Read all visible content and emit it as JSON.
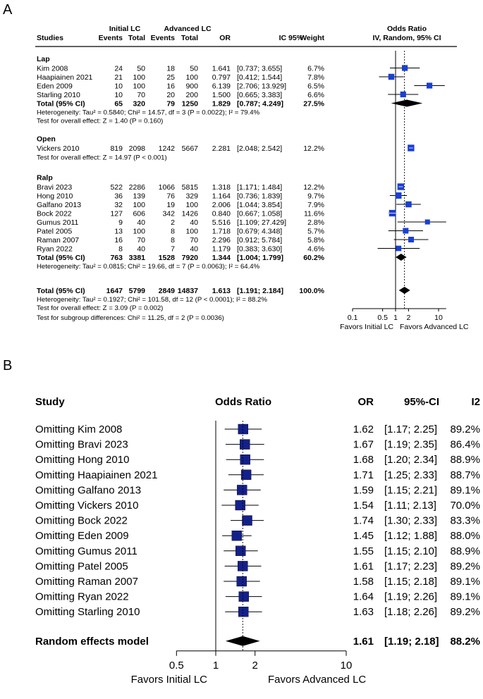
{
  "chart_data": [
    {
      "type": "forest",
      "panel_label": "A",
      "headers": {
        "studies": "Studies",
        "initial_group": "Initial LC",
        "advanced_group": "Advanced LC",
        "events": "Events",
        "total": "Total",
        "or": "OR",
        "ci": "IC 95%",
        "weight": "Weight",
        "plot_title": "Odds Ratio",
        "plot_subtitle": "IV, Random, 95% CI"
      },
      "subgroups": [
        {
          "name": "Lap",
          "studies": [
            {
              "name": "Kim 2008",
              "e1": "24",
              "n1": "50",
              "e2": "18",
              "n2": "50",
              "or_text": "1.641",
              "ci_text": "[0.737;  3.655]",
              "w_text": "6.7%",
              "or": 1.641,
              "lo": 0.737,
              "hi": 3.655,
              "w": 6.7
            },
            {
              "name": "Haapiainen 2021",
              "e1": "21",
              "n1": "100",
              "e2": "25",
              "n2": "100",
              "or_text": "0.797",
              "ci_text": "[0.412;  1.544]",
              "w_text": "7.8%",
              "or": 0.797,
              "lo": 0.412,
              "hi": 1.544,
              "w": 7.8
            },
            {
              "name": "Eden 2009",
              "e1": "10",
              "n1": "100",
              "e2": "16",
              "n2": "900",
              "or_text": "6.139",
              "ci_text": "[2.706; 13.929]",
              "w_text": "6.5%",
              "or": 6.139,
              "lo": 2.706,
              "hi": 13.929,
              "w": 6.5
            },
            {
              "name": "Starling 2010",
              "e1": "10",
              "n1": "70",
              "e2": "20",
              "n2": "200",
              "or_text": "1.500",
              "ci_text": "[0.665;  3.383]",
              "w_text": "6.6%",
              "or": 1.5,
              "lo": 0.665,
              "hi": 3.383,
              "w": 6.6
            }
          ],
          "total": {
            "label": "Total (95% CI)",
            "n1": "320",
            "e1": "65",
            "e2": "79",
            "n2": "1250",
            "or_text": "1.829",
            "ci_text": "[0.787;  4.249]",
            "w_text": "27.5%",
            "or": 1.829,
            "lo": 0.787,
            "hi": 4.249
          },
          "notes": [
            "Heterogeneity: Tau² = 0.5840; Chi² = 14.57, df = 3 (P = 0.0022); I² = 79.4%",
            "Test for overall effect: Z = 1.40 (P = 0.160)"
          ]
        },
        {
          "name": "Open",
          "studies": [
            {
              "name": "Vickers 2010",
              "e1": "819",
              "n1": "2098",
              "e2": "1242",
              "n2": "5667",
              "or_text": "2.281",
              "ci_text": "[2.048;  2.542]",
              "w_text": "12.2%",
              "or": 2.281,
              "lo": 2.048,
              "hi": 2.542,
              "w": 12.2
            }
          ],
          "notes": [
            "Test for overall effect: Z = 14.97 (P < 0.001)"
          ]
        },
        {
          "name": "Ralp",
          "studies": [
            {
              "name": "Bravi 2023",
              "e1": "522",
              "n1": "2286",
              "e2": "1066",
              "n2": "5815",
              "or_text": "1.318",
              "ci_text": "[1.171;  1.484]",
              "w_text": "12.2%",
              "or": 1.318,
              "lo": 1.171,
              "hi": 1.484,
              "w": 12.2
            },
            {
              "name": "Hong 2010",
              "e1": "36",
              "n1": "139",
              "e2": "76",
              "n2": "329",
              "or_text": "1.164",
              "ci_text": "[0.736;  1.839]",
              "w_text": "9.7%",
              "or": 1.164,
              "lo": 0.736,
              "hi": 1.839,
              "w": 9.7
            },
            {
              "name": "Galfano 2013",
              "e1": "32",
              "n1": "100",
              "e2": "19",
              "n2": "100",
              "or_text": "2.006",
              "ci_text": "[1.044;  3.854]",
              "w_text": "7.9%",
              "or": 2.006,
              "lo": 1.044,
              "hi": 3.854,
              "w": 7.9
            },
            {
              "name": "Bock 2022",
              "e1": "127",
              "n1": "606",
              "e2": "342",
              "n2": "1426",
              "or_text": "0.840",
              "ci_text": "[0.667;  1.058]",
              "w_text": "11.6%",
              "or": 0.84,
              "lo": 0.667,
              "hi": 1.058,
              "w": 11.6
            },
            {
              "name": "Gumus 2011",
              "e1": "9",
              "n1": "40",
              "e2": "2",
              "n2": "40",
              "or_text": "5.516",
              "ci_text": "[1.109; 27.429]",
              "w_text": "2.8%",
              "or": 5.516,
              "lo": 1.109,
              "hi": 27.429,
              "w": 2.8
            },
            {
              "name": "Patel 2005",
              "e1": "13",
              "n1": "100",
              "e2": "8",
              "n2": "100",
              "or_text": "1.718",
              "ci_text": "[0.679;  4.348]",
              "w_text": "5.7%",
              "or": 1.718,
              "lo": 0.679,
              "hi": 4.348,
              "w": 5.7
            },
            {
              "name": "Raman 2007",
              "e1": "16",
              "n1": "70",
              "e2": "8",
              "n2": "70",
              "or_text": "2.296",
              "ci_text": "[0.912;  5.784]",
              "w_text": "5.8%",
              "or": 2.296,
              "lo": 0.912,
              "hi": 5.784,
              "w": 5.8
            },
            {
              "name": "Ryan 2022",
              "e1": "8",
              "n1": "40",
              "e2": "7",
              "n2": "40",
              "or_text": "1.179",
              "ci_text": "[0.383;  3.630]",
              "w_text": "4.6%",
              "or": 1.179,
              "lo": 0.383,
              "hi": 3.63,
              "w": 4.6
            }
          ],
          "total": {
            "label": "Total (95% CI)",
            "n1": "3381",
            "e1": "763",
            "e2": "1528",
            "n2": "7920",
            "or_text": "1.344",
            "ci_text": "[1.004;  1.799]",
            "w_text": "60.2%",
            "or": 1.344,
            "lo": 1.004,
            "hi": 1.799
          },
          "notes": [
            "Heterogeneity: Tau² = 0.0815; Chi² = 19.66, df = 7 (P = 0.0063); I² = 64.4%"
          ]
        }
      ],
      "overall": {
        "label": "Total (95% CI)",
        "e1": "1647",
        "n1": "5799",
        "e2": "2849",
        "n2": "14837",
        "or_text": "1.613",
        "ci_text": "[1.191;  2.184]",
        "w_text": "100.0%",
        "or": 1.613,
        "lo": 1.191,
        "hi": 2.184
      },
      "overall_notes": [
        "Heterogeneity: Tau² = 0.1927; Chi² = 101.58, df = 12 (P < 0.0001); I² = 88.2%",
        "Test for overall effect: Z = 3.09 (P = 0.002)",
        "Test for subgroup differences: Chi² = 11.25, df = 2 (P = 0.0036)"
      ],
      "x_axis": {
        "scale": "log",
        "range": [
          0.1,
          15
        ],
        "ticks": [
          0.1,
          0.5,
          1,
          2,
          10
        ],
        "tick_labels": [
          "0.1",
          "0.5",
          "1",
          "2",
          "10"
        ],
        "reference": 1,
        "pooled_line": 1.613
      },
      "favors": {
        "left": "Favors Initial LC",
        "right": "Favors Advanced LC"
      }
    },
    {
      "type": "forest",
      "panel_label": "B",
      "headers": {
        "study": "Study",
        "plot_title": "Odds Ratio",
        "or": "OR",
        "ci": "95%-CI",
        "i2": "I2"
      },
      "rows": [
        {
          "name": "Omitting Kim 2008",
          "or_text": "1.62",
          "ci_text": "[1.17; 2.25]",
          "i2": "89.2%",
          "or": 1.62,
          "lo": 1.17,
          "hi": 2.25
        },
        {
          "name": "Omitting Bravi 2023",
          "or_text": "1.67",
          "ci_text": "[1.19; 2.35]",
          "i2": "86.4%",
          "or": 1.67,
          "lo": 1.19,
          "hi": 2.35
        },
        {
          "name": "Omitting Hong 2010",
          "or_text": "1.68",
          "ci_text": "[1.20; 2.34]",
          "i2": "88.9%",
          "or": 1.68,
          "lo": 1.2,
          "hi": 2.34
        },
        {
          "name": "Omitting Haapiainen 2021",
          "or_text": "1.71",
          "ci_text": "[1.25; 2.33]",
          "i2": "88.7%",
          "or": 1.71,
          "lo": 1.25,
          "hi": 2.33
        },
        {
          "name": "Omitting Galfano 2013",
          "or_text": "1.59",
          "ci_text": "[1.15; 2.21]",
          "i2": "89.1%",
          "or": 1.59,
          "lo": 1.15,
          "hi": 2.21
        },
        {
          "name": "Omitting Vickers 2010",
          "or_text": "1.54",
          "ci_text": "[1.11; 2.13]",
          "i2": "70.0%",
          "or": 1.54,
          "lo": 1.11,
          "hi": 2.13
        },
        {
          "name": "Omitting Bock 2022",
          "or_text": "1.74",
          "ci_text": "[1.30; 2.33]",
          "i2": "83.3%",
          "or": 1.74,
          "lo": 1.3,
          "hi": 2.33
        },
        {
          "name": "Omitting Eden 2009",
          "or_text": "1.45",
          "ci_text": "[1.12; 1.88]",
          "i2": "88.0%",
          "or": 1.45,
          "lo": 1.12,
          "hi": 1.88
        },
        {
          "name": "Omitting Gumus 2011",
          "or_text": "1.55",
          "ci_text": "[1.15; 2.10]",
          "i2": "88.9%",
          "or": 1.55,
          "lo": 1.15,
          "hi": 2.1
        },
        {
          "name": "Omitting Patel 2005",
          "or_text": "1.61",
          "ci_text": "[1.17; 2.23]",
          "i2": "89.2%",
          "or": 1.61,
          "lo": 1.17,
          "hi": 2.23
        },
        {
          "name": "Omitting Raman 2007",
          "or_text": "1.58",
          "ci_text": "[1.15; 2.18]",
          "i2": "89.1%",
          "or": 1.58,
          "lo": 1.15,
          "hi": 2.18
        },
        {
          "name": "Omitting Ryan 2022",
          "or_text": "1.64",
          "ci_text": "[1.19; 2.26]",
          "i2": "89.1%",
          "or": 1.64,
          "lo": 1.19,
          "hi": 2.26
        },
        {
          "name": "Omitting Starling 2010",
          "or_text": "1.63",
          "ci_text": "[1.18; 2.26]",
          "i2": "89.2%",
          "or": 1.63,
          "lo": 1.18,
          "hi": 2.26
        }
      ],
      "overall": {
        "name": "Random effects model",
        "or_text": "1.61",
        "ci_text": "[1.19; 2.18]",
        "i2": "88.2%",
        "or": 1.61,
        "lo": 1.19,
        "hi": 2.18
      },
      "x_axis": {
        "scale": "log",
        "range": [
          0.5,
          10
        ],
        "ticks": [
          0.5,
          1,
          2,
          10
        ],
        "tick_labels": [
          "0.5",
          "1",
          "2",
          "10"
        ],
        "reference": 1,
        "pooled_line": 1.61
      },
      "favors": {
        "left": "Favors Initial LC",
        "right": "Favors Advanced LC"
      }
    }
  ],
  "colors": {
    "square": "#1a3fd1",
    "square_b": "#14208a",
    "whisker": "#000000",
    "ci_marker": "#ffffff"
  }
}
